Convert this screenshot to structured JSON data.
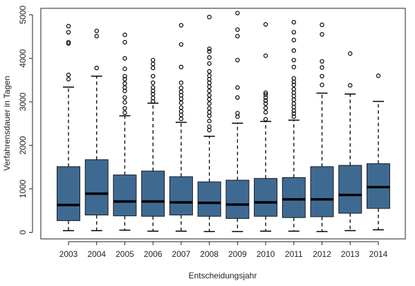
{
  "chart_data": {
    "type": "boxplot",
    "xlabel": "Entscheidungsjahr",
    "ylabel": "Verfahrensdauer in Tagen",
    "ylim": [
      -150,
      5150
    ],
    "yticks": [
      0,
      1000,
      2000,
      3000,
      4000,
      5000
    ],
    "grid": false,
    "box_color": "#3E6A92",
    "categories": [
      "2003",
      "2004",
      "2005",
      "2006",
      "2007",
      "2008",
      "2009",
      "2010",
      "2011",
      "2012",
      "2013",
      "2014"
    ],
    "boxes": [
      {
        "year": "2003",
        "min": 40,
        "q1": 270,
        "median": 630,
        "q3": 1510,
        "max": 3340,
        "outliers": [
          3520,
          3620,
          4340,
          4370,
          4600,
          4740
        ]
      },
      {
        "year": "2004",
        "min": 40,
        "q1": 400,
        "median": 890,
        "q3": 1670,
        "max": 3590,
        "outliers": [
          3780,
          4510,
          4630
        ]
      },
      {
        "year": "2005",
        "min": 50,
        "q1": 380,
        "median": 710,
        "q3": 1320,
        "max": 2680,
        "outliers": [
          2750,
          2850,
          2990,
          3100,
          3250,
          3330,
          3420,
          3520,
          3590,
          3760,
          4000,
          4370,
          4540
        ]
      },
      {
        "year": "2006",
        "min": 30,
        "q1": 370,
        "median": 710,
        "q3": 1410,
        "max": 2970,
        "outliers": [
          3010,
          3090,
          3180,
          3250,
          3330,
          3440,
          3590,
          3780,
          3870,
          3960
        ]
      },
      {
        "year": "2007",
        "min": 30,
        "q1": 400,
        "median": 690,
        "q3": 1280,
        "max": 2530,
        "outliers": [
          2610,
          2700,
          2780,
          2870,
          2980,
          3070,
          3150,
          3230,
          3320,
          3440,
          3800,
          4320,
          4760
        ]
      },
      {
        "year": "2008",
        "min": 20,
        "q1": 370,
        "median": 680,
        "q3": 1160,
        "max": 2210,
        "outliers": [
          2350,
          2430,
          2560,
          2680,
          2760,
          2850,
          2960,
          3060,
          3150,
          3250,
          3350,
          3440,
          3520,
          3600,
          3700,
          3880,
          4020,
          4160,
          4220,
          4950
        ]
      },
      {
        "year": "2009",
        "min": 20,
        "q1": 320,
        "median": 640,
        "q3": 1200,
        "max": 2510,
        "outliers": [
          2660,
          2740,
          3100,
          3330,
          3960,
          4510,
          4660,
          5040
        ]
      },
      {
        "year": "2010",
        "min": 30,
        "q1": 370,
        "median": 690,
        "q3": 1240,
        "max": 2550,
        "outliers": [
          2600,
          2760,
          2860,
          2960,
          3030,
          3100,
          3170,
          3210,
          4060,
          4780
        ]
      },
      {
        "year": "2011",
        "min": 30,
        "q1": 340,
        "median": 760,
        "q3": 1260,
        "max": 2580,
        "outliers": [
          2660,
          2730,
          2800,
          2880,
          2960,
          3050,
          3130,
          3210,
          3290,
          3390,
          3460,
          3540,
          3800,
          3960,
          4180,
          4420,
          4600,
          4830
        ]
      },
      {
        "year": "2012",
        "min": 20,
        "q1": 360,
        "median": 760,
        "q3": 1510,
        "max": 3200,
        "outliers": [
          3390,
          3590,
          3790,
          3930,
          4550,
          4770
        ]
      },
      {
        "year": "2013",
        "min": 40,
        "q1": 440,
        "median": 860,
        "q3": 1540,
        "max": 3180,
        "outliers": [
          3380,
          4110
        ]
      },
      {
        "year": "2014",
        "min": 60,
        "q1": 550,
        "median": 1040,
        "q3": 1580,
        "max": 3010,
        "outliers": [
          3600
        ]
      }
    ]
  }
}
